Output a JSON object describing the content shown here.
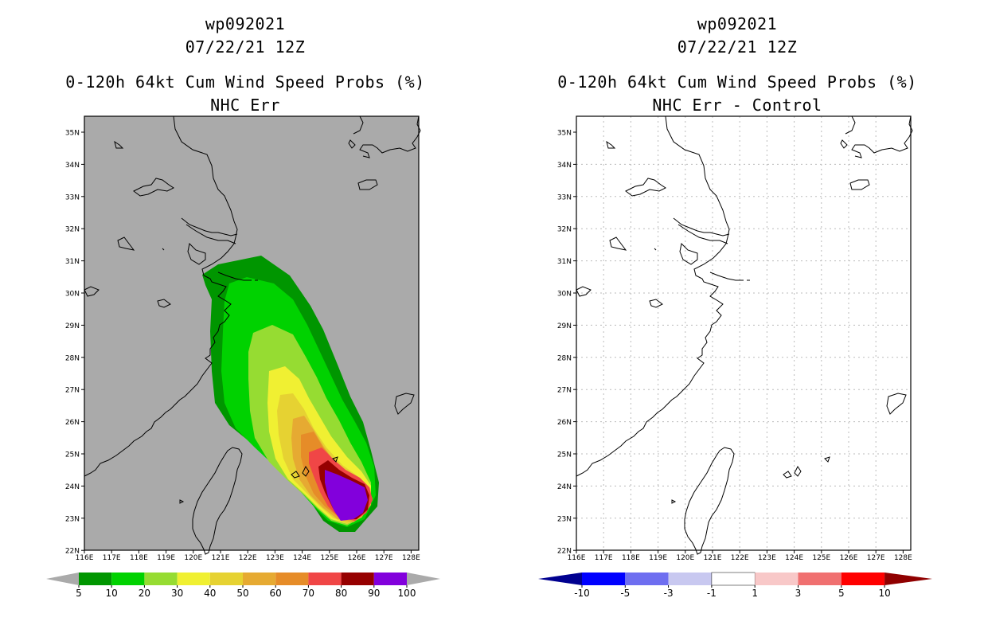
{
  "left_panel": {
    "title_lines": [
      "wp092021",
      "07/22/21 12Z",
      "0-120h 64kt Cum Wind Speed Probs (%)",
      "NHC Err"
    ],
    "map_background": "#aaaaaa",
    "lat_labels": [
      "35N",
      "34N",
      "33N",
      "32N",
      "31N",
      "30N",
      "29N",
      "28N",
      "27N",
      "26N",
      "25N",
      "24N",
      "23N",
      "22N"
    ],
    "lon_labels": [
      "116E",
      "117E",
      "118E",
      "119E",
      "120E",
      "121E",
      "122E",
      "123E",
      "124E",
      "125E",
      "126E",
      "127E",
      "128E"
    ],
    "colorbar": {
      "labels": [
        "5",
        "10",
        "20",
        "30",
        "40",
        "50",
        "60",
        "70",
        "80",
        "90",
        "100"
      ],
      "colors": [
        "#009600",
        "#00d200",
        "#96dc32",
        "#f0f032",
        "#e6d232",
        "#e6aa32",
        "#e68c28",
        "#f04646",
        "#960000",
        "#8200dc"
      ],
      "end_color": "#aaaaaa"
    }
  },
  "right_panel": {
    "title_lines": [
      "wp092021",
      "07/22/21 12Z",
      "0-120h 64kt Cum Wind Speed Probs (%)",
      "NHC Err - Control"
    ],
    "map_background": "#ffffff",
    "lat_labels": [
      "35N",
      "34N",
      "33N",
      "32N",
      "31N",
      "30N",
      "29N",
      "28N",
      "27N",
      "26N",
      "25N",
      "24N",
      "23N",
      "22N"
    ],
    "lon_labels": [
      "116E",
      "117E",
      "118E",
      "119E",
      "120E",
      "121E",
      "122E",
      "123E",
      "124E",
      "125E",
      "126E",
      "127E",
      "128E"
    ],
    "colorbar": {
      "labels": [
        "-10",
        "-5",
        "-3",
        "-1",
        "1",
        "3",
        "5",
        "10"
      ],
      "colors": [
        "#0000ff",
        "#6e6ef0",
        "#c8c8f0",
        "#ffffff",
        "#f8c8c8",
        "#f07070",
        "#ff0000"
      ],
      "left_end_color": "#000090",
      "right_end_color": "#900000"
    }
  },
  "probability_contours": [
    {
      "level": 5,
      "color": "#009600"
    },
    {
      "level": 10,
      "color": "#00d200"
    },
    {
      "level": 20,
      "color": "#96dc32"
    },
    {
      "level": 30,
      "color": "#f0f032"
    },
    {
      "level": 40,
      "color": "#e6d232"
    },
    {
      "level": 50,
      "color": "#e6aa32"
    },
    {
      "level": 60,
      "color": "#e68c28"
    },
    {
      "level": 70,
      "color": "#f04646"
    },
    {
      "level": 80,
      "color": "#960000"
    },
    {
      "level": 90,
      "color": "#8200dc"
    }
  ]
}
